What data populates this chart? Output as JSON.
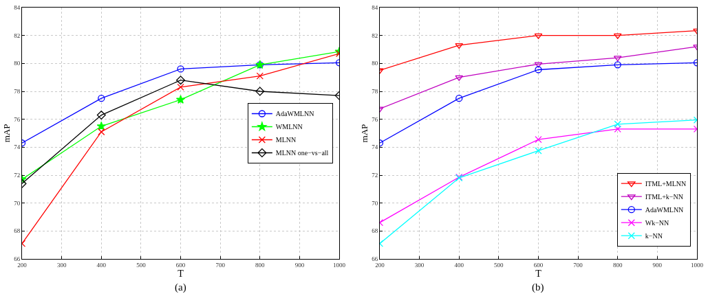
{
  "chart_data": [
    {
      "type": "line",
      "xlabel": "T",
      "ylabel": "mAP",
      "annotations": [
        "(a)"
      ],
      "x": [
        200,
        400,
        600,
        800,
        1000
      ],
      "series": [
        {
          "name": "AdaWMLNN",
          "color": "#0000ff",
          "marker": "circle",
          "values": [
            74.3,
            77.5,
            79.6,
            79.9,
            80.05
          ]
        },
        {
          "name": "WMLNN",
          "color": "#00ff00",
          "marker": "star",
          "values": [
            71.7,
            75.5,
            77.4,
            79.9,
            80.85
          ]
        },
        {
          "name": "MLNN",
          "color": "#ff0000",
          "marker": "cross",
          "values": [
            67.1,
            75.1,
            78.3,
            79.1,
            80.7
          ]
        },
        {
          "name": "MLNN one−vs−all",
          "color": "#000000",
          "marker": "diamond",
          "values": [
            71.4,
            76.3,
            78.8,
            78.0,
            77.7
          ]
        }
      ],
      "xlim": [
        200,
        1000
      ],
      "xticks": [
        200,
        300,
        400,
        500,
        600,
        700,
        800,
        900,
        1000
      ],
      "ylim": [
        66,
        84
      ],
      "yticks": [
        66,
        68,
        70,
        72,
        74,
        76,
        78,
        80,
        82,
        84
      ],
      "grid": true,
      "legend": "right"
    },
    {
      "type": "line",
      "xlabel": "T",
      "ylabel": "mAP",
      "annotations": [
        "(b)"
      ],
      "x": [
        200,
        400,
        600,
        800,
        1000
      ],
      "series": [
        {
          "name": "ITML+MLNN",
          "color": "#ff0000",
          "marker": "triangle",
          "values": [
            79.5,
            81.3,
            82.0,
            82.0,
            82.35
          ]
        },
        {
          "name": "ITML+k−NN",
          "color": "#bf00bf",
          "marker": "triangle",
          "values": [
            76.75,
            79.0,
            79.95,
            80.4,
            81.2
          ]
        },
        {
          "name": "AdaWMLNN",
          "color": "#0000ff",
          "marker": "circle",
          "values": [
            74.3,
            77.5,
            79.55,
            79.9,
            80.05
          ]
        },
        {
          "name": "Wk−NN",
          "color": "#ff00ff",
          "marker": "cross",
          "values": [
            68.6,
            71.85,
            74.55,
            75.3,
            75.3
          ]
        },
        {
          "name": "k−NN",
          "color": "#00ffff",
          "marker": "cross",
          "values": [
            67.1,
            71.8,
            73.75,
            75.65,
            75.95
          ]
        }
      ],
      "xlim": [
        200,
        1000
      ],
      "xticks": [
        200,
        300,
        400,
        500,
        600,
        700,
        800,
        900,
        1000
      ],
      "ylim": [
        66,
        84
      ],
      "yticks": [
        66,
        68,
        70,
        72,
        74,
        76,
        78,
        80,
        82,
        84
      ],
      "grid": true,
      "legend": "bottom right"
    }
  ]
}
